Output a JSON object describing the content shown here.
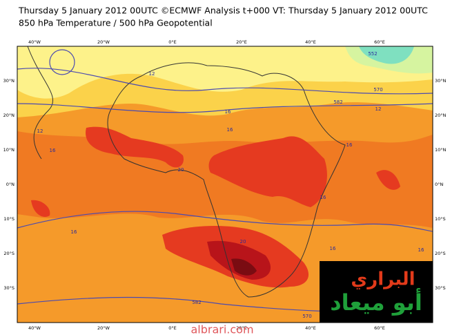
{
  "header": {
    "line1": "Thursday 5 January 2012 00UTC ©ECMWF Analysis t+000 VT: Thursday 5 January 2012 00UTC",
    "line2": "850 hPa Temperature / 500 hPa Geopotential"
  },
  "map": {
    "lon_labels": [
      "40°W",
      "20°W",
      "0°E",
      "20°E",
      "40°E",
      "60°E"
    ],
    "lat_labels": [
      "30°N",
      "20°N",
      "10°N",
      "0°N",
      "10°S",
      "20°S",
      "30°S"
    ],
    "contour_labels": [
      "12",
      "12",
      "16",
      "16",
      "20",
      "20",
      "16",
      "16",
      "12",
      "552",
      "570",
      "582",
      "582",
      "570",
      "16",
      "16",
      "16",
      "16"
    ]
  },
  "logo": {
    "line1": "البراري",
    "line2": "أبو ميعاد"
  },
  "watermark": "albrari.com"
}
